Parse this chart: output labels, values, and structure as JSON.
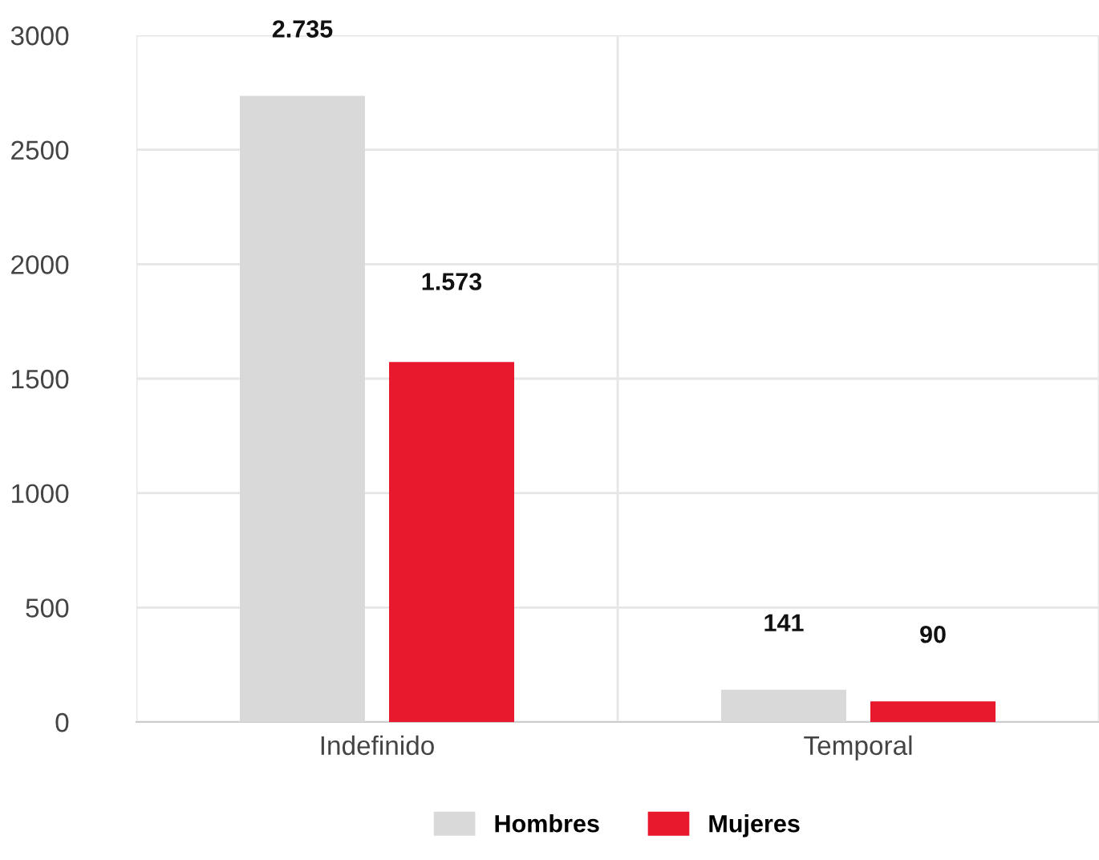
{
  "chart_data": {
    "type": "bar",
    "categories": [
      "Indefinido",
      "Temporal"
    ],
    "series": [
      {
        "name": "Hombres",
        "color": "#d9d9d9",
        "values": [
          2735,
          141
        ],
        "value_labels": [
          "2.735",
          "141"
        ]
      },
      {
        "name": "Mujeres",
        "color": "#e8192c",
        "values": [
          1573,
          90
        ],
        "value_labels": [
          "1.573",
          "90"
        ]
      }
    ],
    "ylim": [
      0,
      3000
    ],
    "yticks": [
      0,
      500,
      1000,
      1500,
      2000,
      2500,
      3000
    ],
    "grid": true,
    "legend": "bottom"
  }
}
